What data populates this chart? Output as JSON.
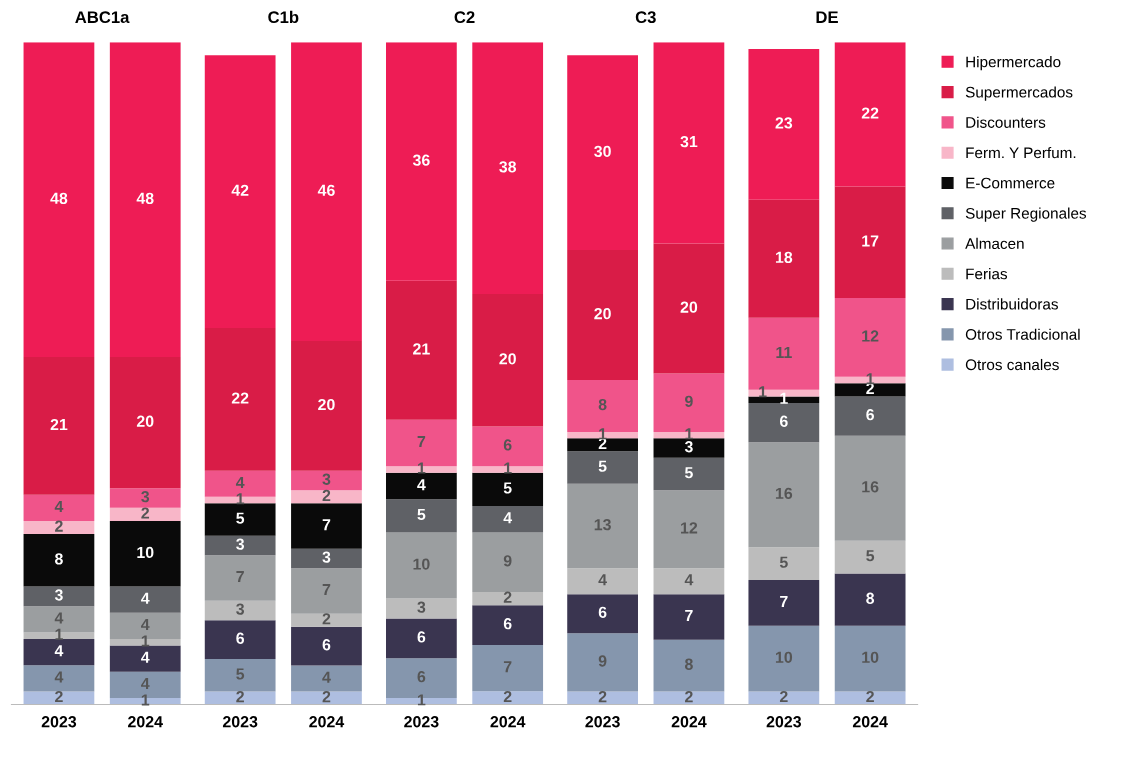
{
  "chart_data": [
    {
      "type": "bar",
      "stacked": true,
      "title": "ABC1a",
      "categories": [
        "2023",
        "2024"
      ],
      "data_labels": true,
      "series": [
        {
          "color": "#aebee0",
          "values": [
            2,
            1
          ]
        },
        {
          "color": "#8596ad",
          "values": [
            4,
            4
          ]
        },
        {
          "color": "#3a3550",
          "values": [
            4,
            4
          ]
        },
        {
          "color": "#bcbcbc",
          "values": [
            1,
            1
          ]
        },
        {
          "color": "#9b9ea0",
          "values": [
            4,
            4
          ]
        },
        {
          "color": "#5f6166",
          "values": [
            3,
            4
          ]
        },
        {
          "color": "#0a0a0a",
          "values": [
            8,
            10
          ]
        },
        {
          "color": "#f8b6c8",
          "values": [
            2,
            2
          ]
        },
        {
          "color": "#f0548a",
          "values": [
            4,
            3
          ]
        },
        {
          "color": "#d91c47",
          "values": [
            21,
            20
          ]
        },
        {
          "color": "#ee1c55",
          "values": [
            48,
            48
          ]
        }
      ]
    },
    {
      "type": "bar",
      "stacked": true,
      "title": "C1b",
      "categories": [
        "2023",
        "2024"
      ],
      "data_labels": true,
      "series": [
        {
          "color": "#aebee0",
          "values": [
            2,
            2
          ]
        },
        {
          "color": "#8596ad",
          "values": [
            5,
            4
          ]
        },
        {
          "color": "#3a3550",
          "values": [
            6,
            6
          ]
        },
        {
          "color": "#bcbcbc",
          "values": [
            3,
            2
          ]
        },
        {
          "color": "#9b9ea0",
          "values": [
            7,
            7
          ]
        },
        {
          "color": "#5f6166",
          "values": [
            3,
            3
          ]
        },
        {
          "color": "#0a0a0a",
          "values": [
            5,
            7
          ]
        },
        {
          "color": "#f8b6c8",
          "values": [
            1,
            2
          ]
        },
        {
          "color": "#f0548a",
          "values": [
            4,
            3
          ]
        },
        {
          "color": "#d91c47",
          "values": [
            22,
            20
          ]
        },
        {
          "color": "#ee1c55",
          "values": [
            42,
            46
          ]
        }
      ]
    },
    {
      "type": "bar",
      "stacked": true,
      "title": "C2",
      "categories": [
        "2023",
        "2024"
      ],
      "data_labels": true,
      "series": [
        {
          "color": "#aebee0",
          "values": [
            1,
            2
          ]
        },
        {
          "color": "#8596ad",
          "values": [
            6,
            7
          ]
        },
        {
          "color": "#3a3550",
          "values": [
            6,
            6
          ]
        },
        {
          "color": "#bcbcbc",
          "values": [
            3,
            2
          ]
        },
        {
          "color": "#9b9ea0",
          "values": [
            10,
            9
          ]
        },
        {
          "color": "#5f6166",
          "values": [
            5,
            4
          ]
        },
        {
          "color": "#0a0a0a",
          "values": [
            4,
            5
          ]
        },
        {
          "color": "#f8b6c8",
          "values": [
            1,
            1
          ]
        },
        {
          "color": "#f0548a",
          "values": [
            7,
            6
          ]
        },
        {
          "color": "#d91c47",
          "values": [
            21,
            20
          ]
        },
        {
          "color": "#ee1c55",
          "values": [
            36,
            38
          ]
        }
      ]
    },
    {
      "type": "bar",
      "stacked": true,
      "title": "C3",
      "categories": [
        "2023",
        "2024"
      ],
      "data_labels": true,
      "series": [
        {
          "color": "#aebee0",
          "values": [
            2,
            2
          ]
        },
        {
          "color": "#8596ad",
          "values": [
            9,
            8
          ]
        },
        {
          "color": "#3a3550",
          "values": [
            6,
            7
          ]
        },
        {
          "color": "#bcbcbc",
          "values": [
            4,
            4
          ]
        },
        {
          "color": "#9b9ea0",
          "values": [
            13,
            12
          ]
        },
        {
          "color": "#5f6166",
          "values": [
            5,
            5
          ]
        },
        {
          "color": "#0a0a0a",
          "values": [
            2,
            3
          ]
        },
        {
          "color": "#f8b6c8",
          "values": [
            1,
            1
          ]
        },
        {
          "color": "#f0548a",
          "values": [
            8,
            9
          ]
        },
        {
          "color": "#d91c47",
          "values": [
            20,
            20
          ]
        },
        {
          "color": "#ee1c55",
          "values": [
            30,
            31
          ]
        }
      ]
    },
    {
      "type": "bar",
      "stacked": true,
      "title": "DE",
      "categories": [
        "2023",
        "2024"
      ],
      "data_labels": true,
      "legend": "right",
      "series": [
        {
          "name": "Otros canales",
          "color": "#aebee0",
          "values": [
            2,
            2
          ]
        },
        {
          "name": "Otros Tradicional",
          "color": "#8596ad",
          "values": [
            10,
            10
          ]
        },
        {
          "name": "Distribuidoras",
          "color": "#3a3550",
          "values": [
            7,
            8
          ]
        },
        {
          "name": "Ferias",
          "color": "#bcbcbc",
          "values": [
            5,
            5
          ]
        },
        {
          "name": "Almacen",
          "color": "#9b9ea0",
          "values": [
            16,
            16
          ]
        },
        {
          "name": "Super Regionales",
          "color": "#5f6166",
          "values": [
            6,
            6
          ]
        },
        {
          "name": "E-Commerce",
          "color": "#0a0a0a",
          "values": [
            1,
            2
          ]
        },
        {
          "name": "Ferm. Y Perfum.",
          "color": "#f8b6c8",
          "values": [
            1,
            1
          ]
        },
        {
          "name": "Discounters",
          "color": "#f0548a",
          "values": [
            11,
            12
          ]
        },
        {
          "name": "Supermercados",
          "color": "#d91c47",
          "values": [
            18,
            17
          ]
        },
        {
          "name": "Hipermercado",
          "color": "#ee1c55",
          "values": [
            23,
            22
          ]
        }
      ]
    }
  ]
}
